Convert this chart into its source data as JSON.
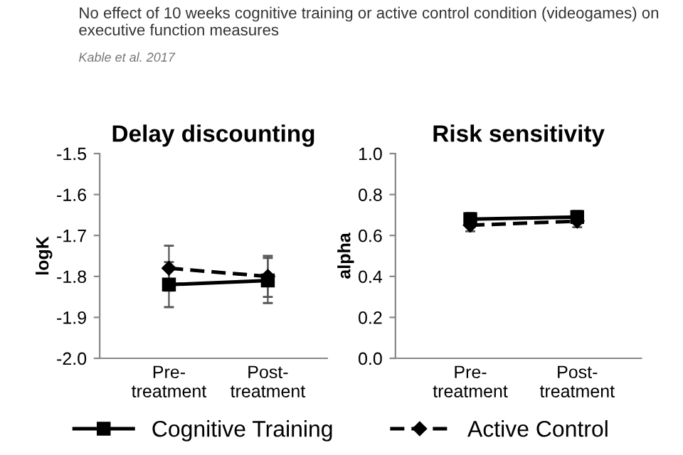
{
  "chart_data": [
    {
      "type": "line",
      "title": "Delay discounting",
      "ylabel": "logK",
      "annotations": [
        "No effect of 10 weeks cognitive training or active control condition (videogames) on executive function measures",
        "Kable et al. 2017"
      ],
      "categories": [
        "Pre-\ntreatment",
        "Post-\ntreatment"
      ],
      "ylim": [
        -2.0,
        -1.5
      ],
      "yticks": [
        {
          "value": -2.0,
          "label": "-2.0"
        },
        -1.9,
        -1.8,
        -1.7,
        -1.6,
        -1.5
      ],
      "grid": false,
      "legend": "bottom",
      "series": [
        {
          "name": "Cognitive Training",
          "color": "#000000",
          "marker": "square",
          "line_style": "solid",
          "values": [
            -1.82,
            -1.81
          ],
          "errors": [
            0.055,
            0.055
          ]
        },
        {
          "name": "Active Control",
          "color": "#000000",
          "marker": "diamond",
          "line_style": "dashed",
          "values": [
            -1.78,
            -1.8
          ],
          "errors": [
            0.055,
            0.05
          ]
        }
      ]
    },
    {
      "type": "line",
      "title": "Risk sensitivity",
      "ylabel": "alpha",
      "categories": [
        "Pre-\ntreatment",
        "Post-\ntreatment"
      ],
      "ylim": [
        0.0,
        1.0
      ],
      "yticks": [
        {
          "value": 0.0,
          "label": "0.0"
        },
        0.2,
        0.4,
        0.6,
        0.8,
        {
          "value": 1.0,
          "label": "1.0"
        }
      ],
      "grid": false,
      "series": [
        {
          "color": "#000000",
          "marker": "square",
          "line_style": "solid",
          "values": [
            0.68,
            0.69
          ],
          "errors": [
            0.03,
            0.03
          ]
        },
        {
          "color": "#000000",
          "marker": "diamond",
          "line_style": "dashed",
          "values": [
            0.65,
            0.67
          ],
          "errors": [
            0.03,
            0.03
          ]
        }
      ]
    }
  ]
}
